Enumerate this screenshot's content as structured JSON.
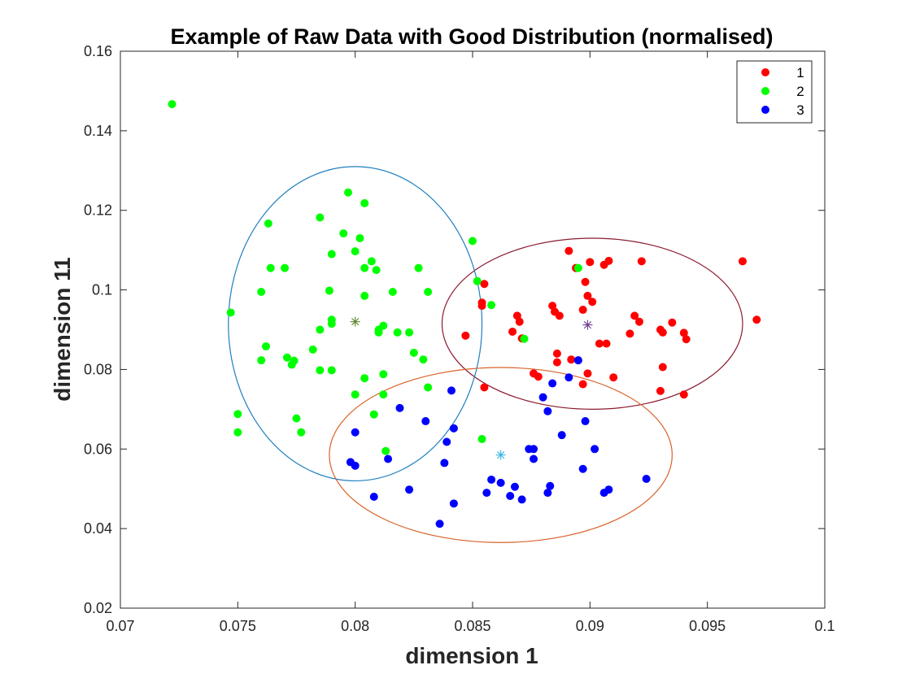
{
  "chart_data": {
    "type": "scatter",
    "title": "Example of Raw Data with Good Distribution (normalised)",
    "xlabel": "dimension 1",
    "ylabel": "dimension 11",
    "xlim": [
      0.07,
      0.1
    ],
    "ylim": [
      0.02,
      0.16
    ],
    "xticks": [
      "0.07",
      "0.075",
      "0.08",
      "0.085",
      "0.09",
      "0.095",
      "0.1"
    ],
    "yticks": [
      "0.02",
      "0.04",
      "0.06",
      "0.08",
      "0.1",
      "0.12",
      "0.14",
      "0.16"
    ],
    "grid": false,
    "legend_position": "top-right",
    "series": [
      {
        "name": "1",
        "color": "#ff0000",
        "points": [
          [
            0.0855,
            0.1015
          ],
          [
            0.0854,
            0.0968
          ],
          [
            0.0854,
            0.096
          ],
          [
            0.0847,
            0.0885
          ],
          [
            0.0855,
            0.0755
          ],
          [
            0.0869,
            0.0935
          ],
          [
            0.087,
            0.092
          ],
          [
            0.0867,
            0.0895
          ],
          [
            0.0871,
            0.0878
          ],
          [
            0.0876,
            0.079
          ],
          [
            0.0878,
            0.0782
          ],
          [
            0.0884,
            0.096
          ],
          [
            0.0885,
            0.0945
          ],
          [
            0.0887,
            0.0935
          ],
          [
            0.0886,
            0.084
          ],
          [
            0.0886,
            0.0818
          ],
          [
            0.0891,
            0.1098
          ],
          [
            0.0892,
            0.0825
          ],
          [
            0.0894,
            0.1055
          ],
          [
            0.0897,
            0.095
          ],
          [
            0.0898,
            0.102
          ],
          [
            0.0899,
            0.0985
          ],
          [
            0.0899,
            0.079
          ],
          [
            0.0897,
            0.0763
          ],
          [
            0.09,
            0.107
          ],
          [
            0.0901,
            0.097
          ],
          [
            0.0904,
            0.0865
          ],
          [
            0.0906,
            0.1063
          ],
          [
            0.0907,
            0.0865
          ],
          [
            0.0908,
            0.1073
          ],
          [
            0.091,
            0.078
          ],
          [
            0.0917,
            0.089
          ],
          [
            0.0919,
            0.0935
          ],
          [
            0.0921,
            0.092
          ],
          [
            0.0922,
            0.1072
          ],
          [
            0.093,
            0.09
          ],
          [
            0.0931,
            0.0893
          ],
          [
            0.0931,
            0.0806
          ],
          [
            0.093,
            0.0746
          ],
          [
            0.0935,
            0.0918
          ],
          [
            0.094,
            0.0892
          ],
          [
            0.0941,
            0.0876
          ],
          [
            0.094,
            0.0737
          ],
          [
            0.0965,
            0.1072
          ],
          [
            0.0971,
            0.0925
          ]
        ]
      },
      {
        "name": "2",
        "color": "#00ff00",
        "points": [
          [
            0.0722,
            0.1467
          ],
          [
            0.0747,
            0.0943
          ],
          [
            0.075,
            0.0688
          ],
          [
            0.075,
            0.0642
          ],
          [
            0.076,
            0.0995
          ],
          [
            0.076,
            0.0823
          ],
          [
            0.0762,
            0.0858
          ],
          [
            0.0763,
            0.1167
          ],
          [
            0.0764,
            0.1055
          ],
          [
            0.077,
            0.1055
          ],
          [
            0.0771,
            0.083
          ],
          [
            0.0773,
            0.0812
          ],
          [
            0.0774,
            0.0822
          ],
          [
            0.0775,
            0.0677
          ],
          [
            0.0777,
            0.0642
          ],
          [
            0.0782,
            0.085
          ],
          [
            0.0785,
            0.1182
          ],
          [
            0.0785,
            0.09
          ],
          [
            0.0785,
            0.0798
          ],
          [
            0.0789,
            0.0998
          ],
          [
            0.079,
            0.109
          ],
          [
            0.079,
            0.0925
          ],
          [
            0.079,
            0.0915
          ],
          [
            0.079,
            0.0798
          ],
          [
            0.0795,
            0.1142
          ],
          [
            0.0797,
            0.1245
          ],
          [
            0.08,
            0.1097
          ],
          [
            0.08,
            0.0737
          ],
          [
            0.0802,
            0.113
          ],
          [
            0.0804,
            0.1218
          ],
          [
            0.0804,
            0.1055
          ],
          [
            0.0804,
            0.0985
          ],
          [
            0.0804,
            0.0778
          ],
          [
            0.0807,
            0.1072
          ],
          [
            0.0808,
            0.0687
          ],
          [
            0.0809,
            0.105
          ],
          [
            0.081,
            0.09
          ],
          [
            0.081,
            0.0893
          ],
          [
            0.0812,
            0.091
          ],
          [
            0.0812,
            0.0788
          ],
          [
            0.0812,
            0.0737
          ],
          [
            0.0813,
            0.0595
          ],
          [
            0.0816,
            0.0995
          ],
          [
            0.0818,
            0.0893
          ],
          [
            0.0823,
            0.0893
          ],
          [
            0.0825,
            0.0842
          ],
          [
            0.0827,
            0.1055
          ],
          [
            0.0829,
            0.0825
          ],
          [
            0.0831,
            0.0995
          ],
          [
            0.0831,
            0.0755
          ],
          [
            0.085,
            0.1123
          ],
          [
            0.0852,
            0.1022
          ],
          [
            0.0854,
            0.0625
          ],
          [
            0.0858,
            0.0962
          ],
          [
            0.0872,
            0.0877
          ],
          [
            0.0895,
            0.1055
          ]
        ]
      },
      {
        "name": "3",
        "color": "#0000ff",
        "points": [
          [
            0.0798,
            0.0567
          ],
          [
            0.08,
            0.0642
          ],
          [
            0.08,
            0.0558
          ],
          [
            0.0808,
            0.048
          ],
          [
            0.0814,
            0.0575
          ],
          [
            0.0819,
            0.0703
          ],
          [
            0.0823,
            0.0498
          ],
          [
            0.083,
            0.067
          ],
          [
            0.0836,
            0.0412
          ],
          [
            0.0838,
            0.0565
          ],
          [
            0.0839,
            0.0618
          ],
          [
            0.0841,
            0.0747
          ],
          [
            0.0842,
            0.0652
          ],
          [
            0.0842,
            0.0463
          ],
          [
            0.0856,
            0.049
          ],
          [
            0.0858,
            0.0523
          ],
          [
            0.0862,
            0.0515
          ],
          [
            0.0866,
            0.0482
          ],
          [
            0.0868,
            0.0505
          ],
          [
            0.0871,
            0.0473
          ],
          [
            0.0874,
            0.06
          ],
          [
            0.0876,
            0.06
          ],
          [
            0.0876,
            0.0575
          ],
          [
            0.088,
            0.073
          ],
          [
            0.0882,
            0.0695
          ],
          [
            0.0882,
            0.049
          ],
          [
            0.0883,
            0.0507
          ],
          [
            0.0884,
            0.0765
          ],
          [
            0.0888,
            0.0635
          ],
          [
            0.0891,
            0.078
          ],
          [
            0.0895,
            0.0823
          ],
          [
            0.0897,
            0.055
          ],
          [
            0.0898,
            0.067
          ],
          [
            0.0902,
            0.06
          ],
          [
            0.0906,
            0.049
          ],
          [
            0.0908,
            0.0498
          ],
          [
            0.0924,
            0.0525
          ]
        ]
      }
    ],
    "centroids": [
      {
        "series": "1",
        "x": 0.0899,
        "y": 0.0912,
        "color": "#6a3d8f"
      },
      {
        "series": "2",
        "x": 0.08,
        "y": 0.092,
        "color": "#5b7f2a"
      },
      {
        "series": "3",
        "x": 0.0862,
        "y": 0.0585,
        "color": "#38b6e0"
      }
    ],
    "ellipses": [
      {
        "series": "1",
        "cx": 0.0901,
        "cy": 0.0915,
        "rx": 0.0064,
        "ry": 0.0215,
        "color": "#8b1a2e"
      },
      {
        "series": "2",
        "cx": 0.08,
        "cy": 0.0915,
        "rx": 0.0054,
        "ry": 0.0395,
        "color": "#1f7fc0"
      },
      {
        "series": "3",
        "cx": 0.0862,
        "cy": 0.0585,
        "rx": 0.0073,
        "ry": 0.022,
        "color": "#d9632a"
      }
    ]
  }
}
